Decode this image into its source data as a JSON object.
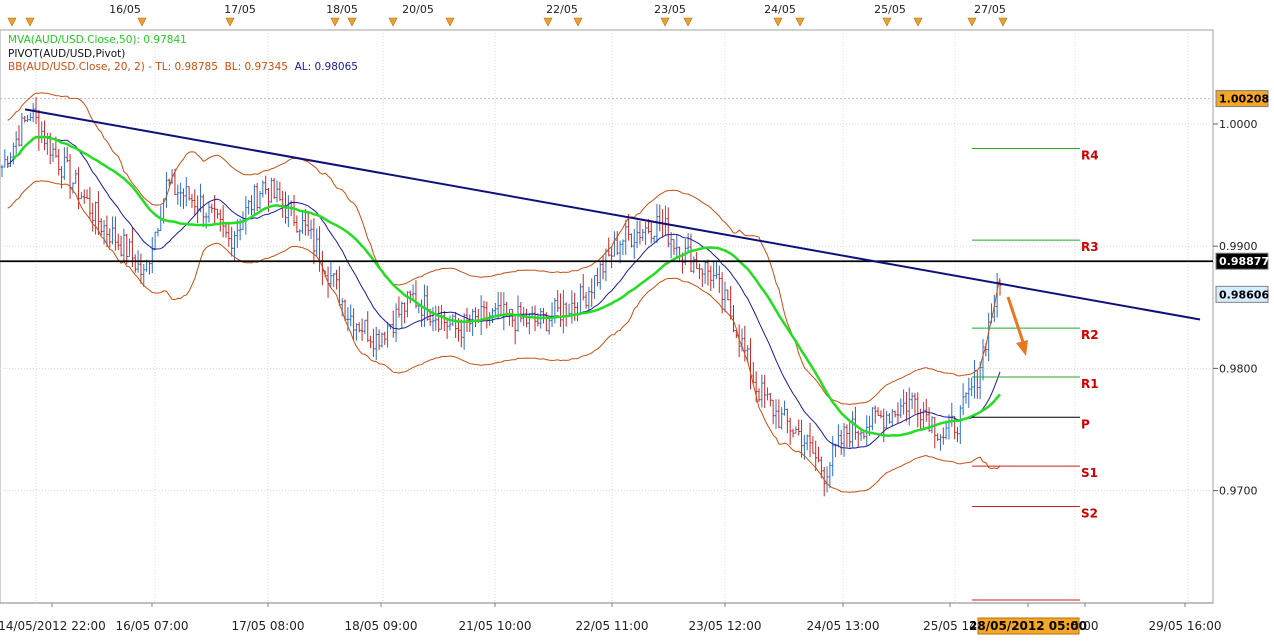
{
  "chart_data": {
    "type": "candlestick",
    "symbol": "AUD/USD",
    "ylim": [
      0.9618,
      1.0058
    ],
    "yticks": [
      "1.0000",
      "0.9900",
      "0.9800",
      "0.9700"
    ],
    "top_date_labels": [
      "16/05",
      "17/05",
      "18/05",
      "20/05",
      "22/05",
      "23/05",
      "24/05",
      "25/05",
      "27/05"
    ],
    "bottom_time_labels": [
      "14/05/2012 22:00",
      "16/05 07:00",
      "17/05 08:00",
      "18/05 09:00",
      "21/05 10:00",
      "22/05 11:00",
      "23/05 12:00",
      "24/05 13:00",
      "25/05 14",
      "28/05/2012 05:00",
      "5:00",
      "29/05 16:00"
    ],
    "price_tags": {
      "top": "1.00208",
      "horizontal_line": "0.98877",
      "last": "0.98606"
    },
    "legend": {
      "mva": "MVA(AUD/USD.Close,50): 0.97841",
      "pivot": "PIVOT(AUD/USD,Pivot)",
      "bb_name": "BB(AUD/USD.Close, 20, 2)",
      "bb_sep": " - ",
      "bb_tl": "TL: 0.98785",
      "bb_bl": "BL: 0.97345",
      "bb_al": "AL: 0.98065"
    },
    "pivot_levels": [
      {
        "label": "R4",
        "value": 0.998
      },
      {
        "label": "R3",
        "value": 0.9905
      },
      {
        "label": "R2",
        "value": 0.9833
      },
      {
        "label": "R1",
        "value": 0.9793
      },
      {
        "label": "P",
        "value": 0.976
      },
      {
        "label": "S1",
        "value": 0.972
      },
      {
        "label": "S2",
        "value": 0.9687
      }
    ],
    "horizontal_line_value": 0.98877,
    "trendline": {
      "start_value": 1.0012,
      "end_value": 0.984
    },
    "series": [
      {
        "name": "MVA",
        "color": "#22dd22"
      },
      {
        "name": "BB",
        "color": "#c85010"
      },
      {
        "name": "AL",
        "color": "#1a1aa0"
      }
    ]
  },
  "colors": {
    "bull": "#2a6fc9",
    "bear": "#c42828",
    "pivot_line": "#22aa22",
    "pivot_label": "#cc0000",
    "trendline": "#10107a",
    "arrow": "#e87722",
    "tag_orange": "#f5a623",
    "tag_blue": "#d6ecff"
  }
}
